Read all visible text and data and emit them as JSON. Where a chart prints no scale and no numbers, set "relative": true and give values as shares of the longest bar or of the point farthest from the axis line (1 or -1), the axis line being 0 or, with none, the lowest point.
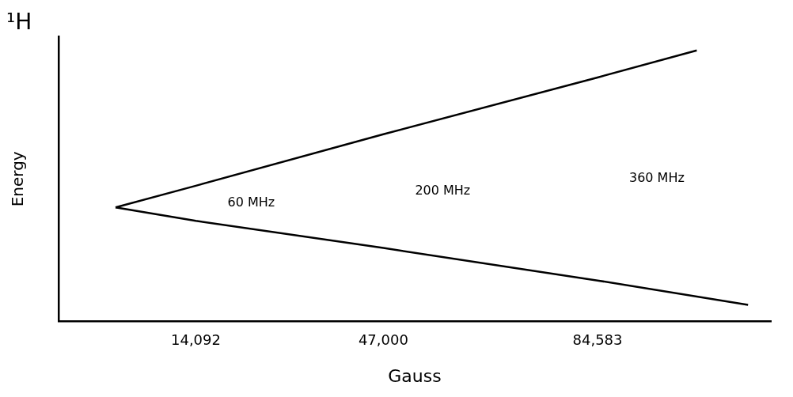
{
  "chart_data": {
    "type": "line",
    "title": "¹H",
    "xlabel": "Gauss",
    "ylabel": "Energy",
    "relative": true,
    "xlim": [
      -10000,
      115000
    ],
    "xticks": [
      {
        "value": 14092,
        "label": "14,092"
      },
      {
        "value": 47000,
        "label": "47,000"
      },
      {
        "value": 84583,
        "label": "84,583"
      }
    ],
    "series": [
      {
        "color": "#000000",
        "x": [
          0,
          14092,
          47000,
          84583,
          102000
        ],
        "values": [
          0.42,
          0.5,
          0.69,
          0.9,
          1
        ]
      },
      {
        "color": "#000000",
        "x": [
          0,
          14092,
          47000,
          84583,
          111000
        ],
        "values": [
          0.42,
          0.37,
          0.27,
          0.15,
          0.06
        ]
      }
    ],
    "annotations": [
      "60 MHz",
      "200 MHz",
      "360 MHz"
    ],
    "grid": false,
    "legend": false,
    "marker": "none",
    "line_style": "solid"
  }
}
